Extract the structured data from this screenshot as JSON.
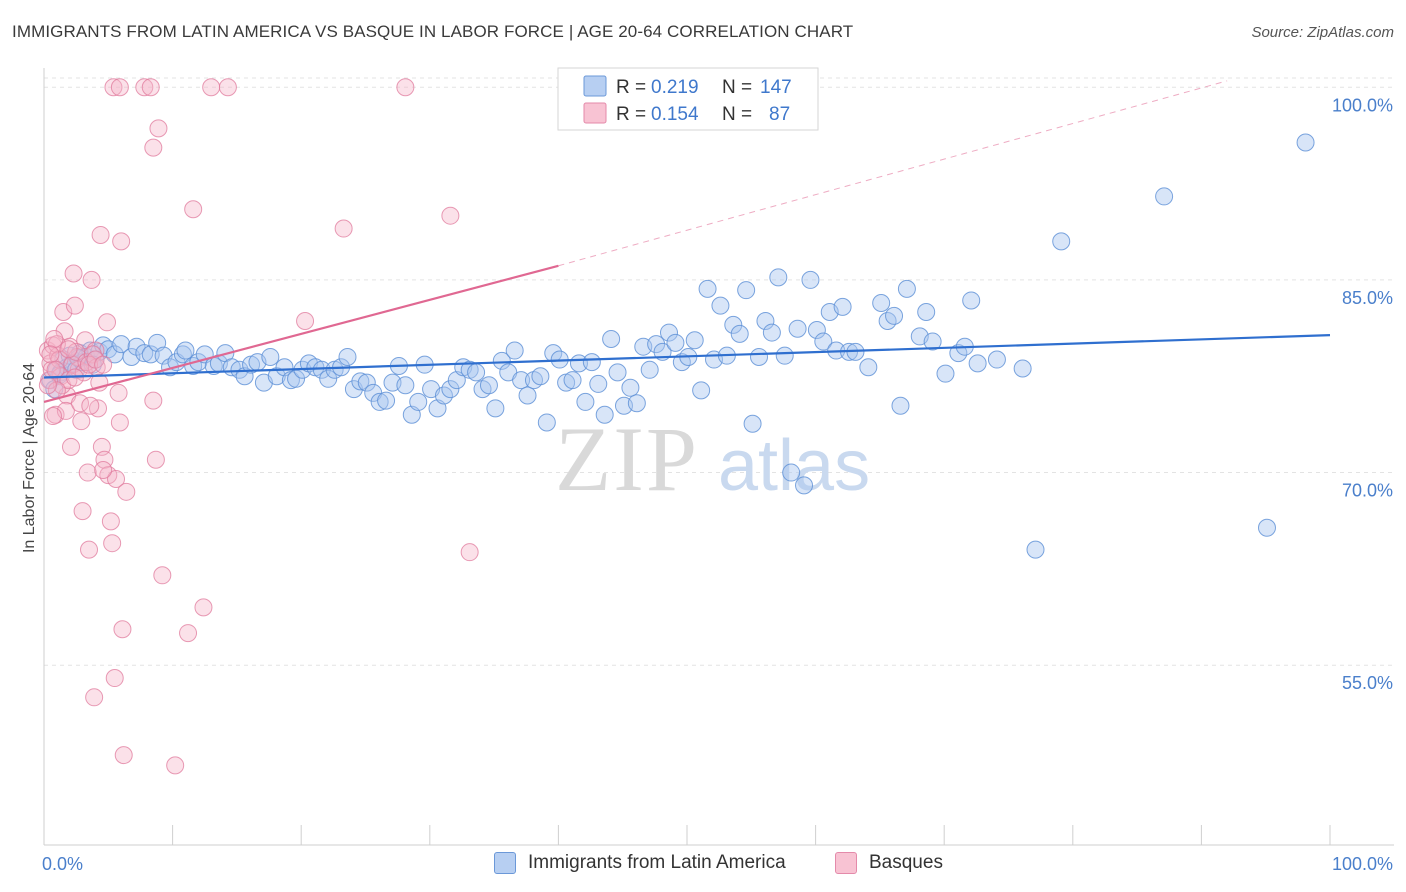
{
  "header": {
    "title": "IMMIGRANTS FROM LATIN AMERICA VS BASQUE IN LABOR FORCE | AGE 20-64 CORRELATION CHART",
    "source": "Source: ZipAtlas.com"
  },
  "watermark": {
    "zip": "ZIP",
    "atlas": "atlas"
  },
  "legend": {
    "rows": [
      {
        "r_label": "R =",
        "r_value": "0.219",
        "n_label": "N =",
        "n_value": "147"
      },
      {
        "r_label": "R =",
        "r_value": "0.154",
        "n_label": "N =",
        "n_value": "87"
      }
    ],
    "bottom": [
      "Immigrants from Latin America",
      "Basques"
    ]
  },
  "chart_data": {
    "type": "scatter",
    "title": "IMMIGRANTS FROM LATIN AMERICA VS BASQUE IN LABOR FORCE | AGE 20-64 CORRELATION CHART",
    "xlabel": "",
    "ylabel": "In Labor Force | Age 20-64",
    "xlim": [
      0,
      100
    ],
    "ylim": [
      41,
      101.5
    ],
    "x_tick_labels": [
      "0.0%",
      "100.0%"
    ],
    "y_ticks": [
      {
        "value": 100,
        "label": "100.0%"
      },
      {
        "value": 85,
        "label": "85.0%"
      },
      {
        "value": 70,
        "label": "70.0%"
      },
      {
        "value": 55,
        "label": "55.0%"
      }
    ],
    "grid": true,
    "legend_position": "top-center",
    "colors": {
      "blue_fill": "#a9c6ef",
      "blue_stroke": "#5b8fd6",
      "blue_line": "#2f6fcf",
      "pink_fill": "#f6b3c8",
      "pink_stroke": "#e0799c",
      "pink_line": "#e06892",
      "axis_label_blue": "#4a7fcb"
    },
    "series": [
      {
        "name": "Immigrants from Latin America",
        "color": "#a9c6ef",
        "trend": {
          "x0": 0,
          "y0": 77.4,
          "x1": 100,
          "y1": 80.7
        },
        "points": [
          [
            0.5,
            77.2
          ],
          [
            0.8,
            76.5
          ],
          [
            1.0,
            78.0
          ],
          [
            1.3,
            77.8
          ],
          [
            1.5,
            78.8
          ],
          [
            1.8,
            78.2
          ],
          [
            2.0,
            79.1
          ],
          [
            2.2,
            78.5
          ],
          [
            2.5,
            78.0
          ],
          [
            2.8,
            79.3
          ],
          [
            3.0,
            78.6
          ],
          [
            3.3,
            79.0
          ],
          [
            3.6,
            79.5
          ],
          [
            4.0,
            78.8
          ],
          [
            4.3,
            79.4
          ],
          [
            4.6,
            79.9
          ],
          [
            5.0,
            79.6
          ],
          [
            5.5,
            79.2
          ],
          [
            6.0,
            80.0
          ],
          [
            6.8,
            79.0
          ],
          [
            7.2,
            79.8
          ],
          [
            7.8,
            79.3
          ],
          [
            8.3,
            79.2
          ],
          [
            8.8,
            80.1
          ],
          [
            9.3,
            79.1
          ],
          [
            9.8,
            78.2
          ],
          [
            10.3,
            78.6
          ],
          [
            10.8,
            79.2
          ],
          [
            11.0,
            79.5
          ],
          [
            11.6,
            78.3
          ],
          [
            12.0,
            78.6
          ],
          [
            12.5,
            79.2
          ],
          [
            13.2,
            78.3
          ],
          [
            13.6,
            78.5
          ],
          [
            14.1,
            79.3
          ],
          [
            14.6,
            78.2
          ],
          [
            15.2,
            78.0
          ],
          [
            15.6,
            77.5
          ],
          [
            16.1,
            78.4
          ],
          [
            16.6,
            78.6
          ],
          [
            17.1,
            77.0
          ],
          [
            17.6,
            79.0
          ],
          [
            18.1,
            77.5
          ],
          [
            18.7,
            78.2
          ],
          [
            19.2,
            77.2
          ],
          [
            19.6,
            77.3
          ],
          [
            20.1,
            78.0
          ],
          [
            20.6,
            78.5
          ],
          [
            21.1,
            78.2
          ],
          [
            21.6,
            78.0
          ],
          [
            22.1,
            77.3
          ],
          [
            22.6,
            78.0
          ],
          [
            23.1,
            78.2
          ],
          [
            23.6,
            79.0
          ],
          [
            24.1,
            76.5
          ],
          [
            24.6,
            77.1
          ],
          [
            25.1,
            77.0
          ],
          [
            25.6,
            76.2
          ],
          [
            26.1,
            75.5
          ],
          [
            26.6,
            75.6
          ],
          [
            27.1,
            77.0
          ],
          [
            27.6,
            78.3
          ],
          [
            28.1,
            76.8
          ],
          [
            28.6,
            74.5
          ],
          [
            29.1,
            75.5
          ],
          [
            29.6,
            78.4
          ],
          [
            30.1,
            76.5
          ],
          [
            30.6,
            75.0
          ],
          [
            31.1,
            76.0
          ],
          [
            31.6,
            76.5
          ],
          [
            32.1,
            77.2
          ],
          [
            32.6,
            78.2
          ],
          [
            33.1,
            78.0
          ],
          [
            33.6,
            77.8
          ],
          [
            34.1,
            76.5
          ],
          [
            34.6,
            76.8
          ],
          [
            35.1,
            75.0
          ],
          [
            35.6,
            78.7
          ],
          [
            36.1,
            77.8
          ],
          [
            36.6,
            79.5
          ],
          [
            37.1,
            77.2
          ],
          [
            37.6,
            76.0
          ],
          [
            38.1,
            77.2
          ],
          [
            38.6,
            77.5
          ],
          [
            39.1,
            73.9
          ],
          [
            39.6,
            79.3
          ],
          [
            40.1,
            78.8
          ],
          [
            40.6,
            77.0
          ],
          [
            41.1,
            77.2
          ],
          [
            41.6,
            78.5
          ],
          [
            42.1,
            75.5
          ],
          [
            42.6,
            78.6
          ],
          [
            43.1,
            76.9
          ],
          [
            43.6,
            74.5
          ],
          [
            44.1,
            80.4
          ],
          [
            44.6,
            77.8
          ],
          [
            45.1,
            75.2
          ],
          [
            45.6,
            76.6
          ],
          [
            46.1,
            75.4
          ],
          [
            46.6,
            79.8
          ],
          [
            47.1,
            78.0
          ],
          [
            47.6,
            80.0
          ],
          [
            48.1,
            79.4
          ],
          [
            48.6,
            80.9
          ],
          [
            49.1,
            80.1
          ],
          [
            49.6,
            78.6
          ],
          [
            50.1,
            79.0
          ],
          [
            50.6,
            80.3
          ],
          [
            51.1,
            76.4
          ],
          [
            51.6,
            84.3
          ],
          [
            52.1,
            78.8
          ],
          [
            52.6,
            83.0
          ],
          [
            53.1,
            79.1
          ],
          [
            53.6,
            81.5
          ],
          [
            54.1,
            80.8
          ],
          [
            54.6,
            84.2
          ],
          [
            55.1,
            73.8
          ],
          [
            55.6,
            79.0
          ],
          [
            56.1,
            81.8
          ],
          [
            56.6,
            80.9
          ],
          [
            57.1,
            85.2
          ],
          [
            57.6,
            79.1
          ],
          [
            58.1,
            70.0
          ],
          [
            58.6,
            81.2
          ],
          [
            59.1,
            69.0
          ],
          [
            59.6,
            85.0
          ],
          [
            60.1,
            81.1
          ],
          [
            60.6,
            80.2
          ],
          [
            61.1,
            82.5
          ],
          [
            61.6,
            79.5
          ],
          [
            62.1,
            82.9
          ],
          [
            62.6,
            79.4
          ],
          [
            63.1,
            79.4
          ],
          [
            64.1,
            78.2
          ],
          [
            65.1,
            83.2
          ],
          [
            65.6,
            81.8
          ],
          [
            66.1,
            82.2
          ],
          [
            66.6,
            75.2
          ],
          [
            67.1,
            84.3
          ],
          [
            68.1,
            80.6
          ],
          [
            68.6,
            82.5
          ],
          [
            69.1,
            80.2
          ],
          [
            70.1,
            77.7
          ],
          [
            71.1,
            79.3
          ],
          [
            71.6,
            79.8
          ],
          [
            72.1,
            83.4
          ],
          [
            72.6,
            78.5
          ],
          [
            74.1,
            78.8
          ],
          [
            76.1,
            78.1
          ],
          [
            77.1,
            64.0
          ],
          [
            79.1,
            88.0
          ],
          [
            87.1,
            91.5
          ],
          [
            95.1,
            65.7
          ],
          [
            98.1,
            95.7
          ],
          [
            1.2,
            77.6
          ],
          [
            2.7,
            78.9
          ],
          [
            3.8,
            78.4
          ]
        ]
      },
      {
        "name": "Basques",
        "color": "#f6b3c8",
        "trend": {
          "x0": 0,
          "y0": 75.5,
          "x1": 40,
          "y1": 86.1
        },
        "trend_dashed": {
          "x0": 40,
          "y0": 86.1,
          "x1": 92,
          "y1": 100.5
        },
        "points": [
          [
            0.3,
            79.5
          ],
          [
            0.5,
            78.5
          ],
          [
            0.7,
            79.9
          ],
          [
            0.9,
            74.5
          ],
          [
            1.1,
            79.1
          ],
          [
            1.3,
            77.5
          ],
          [
            1.5,
            82.5
          ],
          [
            1.6,
            81.0
          ],
          [
            1.8,
            76.0
          ],
          [
            2.0,
            79.8
          ],
          [
            2.1,
            72.0
          ],
          [
            2.3,
            85.5
          ],
          [
            2.4,
            83.0
          ],
          [
            2.6,
            79.0
          ],
          [
            2.7,
            78.0
          ],
          [
            2.9,
            74.0
          ],
          [
            3.0,
            67.0
          ],
          [
            3.2,
            80.3
          ],
          [
            3.4,
            70.0
          ],
          [
            3.5,
            64.0
          ],
          [
            3.7,
            85.0
          ],
          [
            3.9,
            52.5
          ],
          [
            4.0,
            79.5
          ],
          [
            4.2,
            75.0
          ],
          [
            4.4,
            88.5
          ],
          [
            4.5,
            72.0
          ],
          [
            4.7,
            71.0
          ],
          [
            4.9,
            81.7
          ],
          [
            5.0,
            69.8
          ],
          [
            5.2,
            66.2
          ],
          [
            5.3,
            64.5
          ],
          [
            5.5,
            54.0
          ],
          [
            5.6,
            69.5
          ],
          [
            5.8,
            76.2
          ],
          [
            5.9,
            73.9
          ],
          [
            6.0,
            88.0
          ],
          [
            6.1,
            57.8
          ],
          [
            6.2,
            48.0
          ],
          [
            6.4,
            68.5
          ],
          [
            5.4,
            100.0
          ],
          [
            5.9,
            100.0
          ],
          [
            7.8,
            100.0
          ],
          [
            8.3,
            100.0
          ],
          [
            8.5,
            95.3
          ],
          [
            8.7,
            71.0
          ],
          [
            8.9,
            96.8
          ],
          [
            9.2,
            62.0
          ],
          [
            10.2,
            47.2
          ],
          [
            11.2,
            57.5
          ],
          [
            11.6,
            90.5
          ],
          [
            12.4,
            59.5
          ],
          [
            13.0,
            100.0
          ],
          [
            14.3,
            100.0
          ],
          [
            20.3,
            81.8
          ],
          [
            23.3,
            89.0
          ],
          [
            28.1,
            100.0
          ],
          [
            31.6,
            90.0
          ],
          [
            33.1,
            63.8
          ],
          [
            8.5,
            75.6
          ],
          [
            1.0,
            80.0
          ],
          [
            1.2,
            78.8
          ],
          [
            1.4,
            76.8
          ],
          [
            1.7,
            74.8
          ],
          [
            1.9,
            77.2
          ],
          [
            2.2,
            78.4
          ],
          [
            2.5,
            79.4
          ],
          [
            2.8,
            75.4
          ],
          [
            3.1,
            77.8
          ],
          [
            3.3,
            78.6
          ],
          [
            3.6,
            75.2
          ],
          [
            3.8,
            79.2
          ],
          [
            4.1,
            78.2
          ],
          [
            4.3,
            77.0
          ],
          [
            4.6,
            70.2
          ],
          [
            0.4,
            77.2
          ],
          [
            0.6,
            78.0
          ],
          [
            0.8,
            80.4
          ],
          [
            1.0,
            76.4
          ],
          [
            1.9,
            79.6
          ],
          [
            2.4,
            77.4
          ],
          [
            3.5,
            78.4
          ],
          [
            4.0,
            78.8
          ],
          [
            4.6,
            78.4
          ],
          [
            0.3,
            76.8
          ],
          [
            0.5,
            79.2
          ],
          [
            0.7,
            74.4
          ],
          [
            0.9,
            78.0
          ]
        ]
      }
    ]
  }
}
